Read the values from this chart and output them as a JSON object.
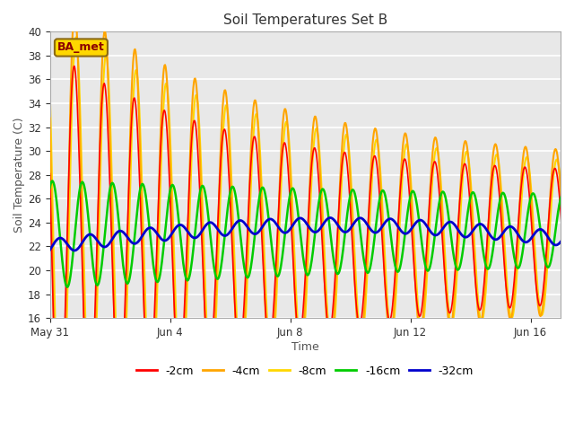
{
  "title": "Soil Temperatures Set B",
  "xlabel": "Time",
  "ylabel": "Soil Temperature (C)",
  "ylim": [
    16,
    40
  ],
  "yticks": [
    16,
    18,
    20,
    22,
    24,
    26,
    28,
    30,
    32,
    34,
    36,
    38,
    40
  ],
  "label_text": "BA_met",
  "label_color": "#8B0000",
  "label_bg": "#FFD700",
  "label_edge": "#8B6914",
  "fig_bg": "#FFFFFF",
  "plot_bg": "#E8E8E8",
  "grid_color": "#FFFFFF",
  "line_colors": {
    "-2cm": "#FF0000",
    "-4cm": "#FFA500",
    "-8cm": "#FFD700",
    "-16cm": "#00CC00",
    "-32cm": "#0000CD"
  },
  "line_widths": {
    "-2cm": 1.2,
    "-4cm": 1.5,
    "-8cm": 1.5,
    "-16cm": 1.8,
    "-32cm": 2.0
  },
  "tick_days": [
    0,
    4,
    8,
    12,
    16
  ],
  "tick_labels": [
    "May 31",
    "Jun 4",
    "Jun 8",
    "Jun 12",
    "Jun 16"
  ],
  "num_days": 18,
  "samples_per_day": 48
}
